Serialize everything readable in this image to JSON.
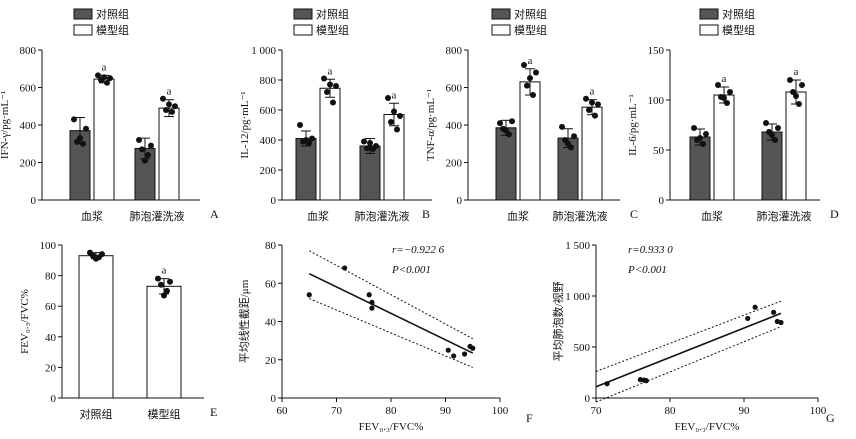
{
  "chart_data": [
    {
      "type": "bar",
      "panel": "A",
      "ylabel": "IFN-γ/pg·mL⁻¹",
      "ylim": [
        0,
        800
      ],
      "yticks": [
        0,
        200,
        400,
        600,
        800
      ],
      "categories": [
        "血浆",
        "肺泡灌洗液"
      ],
      "series": [
        {
          "name": "对照组",
          "color": "#555555",
          "values": [
            370,
            275
          ],
          "err": [
            70,
            55
          ],
          "points": [
            [
              430,
              380,
              310,
              300,
              330
            ],
            [
              320,
              290,
              270,
              240,
              210
            ]
          ]
        },
        {
          "name": "模型组",
          "color": "#ffffff",
          "values": [
            645,
            490
          ],
          "err": [
            20,
            45
          ],
          "points": [
            [
              665,
              650,
              640,
              625,
              655
            ],
            [
              540,
              500,
              480,
              470,
              510
            ]
          ]
        }
      ],
      "significance": [
        "a",
        "a"
      ]
    },
    {
      "type": "bar",
      "panel": "B",
      "ylabel": "IL-12/pg·mL⁻¹",
      "ylim": [
        0,
        1000
      ],
      "yticks": [
        0,
        200,
        400,
        600,
        800,
        1000
      ],
      "ytick_labels": [
        "0",
        "200",
        "400",
        "600",
        "800",
        "1 000"
      ],
      "categories": [
        "血浆",
        "肺泡灌洗液"
      ],
      "series": [
        {
          "name": "对照组",
          "color": "#555555",
          "values": [
            410,
            360
          ],
          "err": [
            50,
            50
          ],
          "points": [
            [
              500,
              410,
              390,
              380,
              400
            ],
            [
              390,
              360,
              345,
              340,
              380
            ]
          ]
        },
        {
          "name": "模型组",
          "color": "#ffffff",
          "values": [
            745,
            570
          ],
          "err": [
            60,
            75
          ],
          "points": [
            [
              810,
              760,
              720,
              650,
              770
            ],
            [
              680,
              560,
              520,
              470,
              590
            ]
          ]
        }
      ],
      "significance": [
        "a",
        "a"
      ]
    },
    {
      "type": "bar",
      "panel": "C",
      "ylabel": "TNF-α/pg·mL⁻¹",
      "ylim": [
        0,
        800
      ],
      "yticks": [
        0,
        200,
        400,
        600,
        800
      ],
      "categories": [
        "血浆",
        "肺泡灌洗液"
      ],
      "series": [
        {
          "name": "对照组",
          "color": "#555555",
          "values": [
            385,
            330
          ],
          "err": [
            40,
            50
          ],
          "points": [
            [
              410,
              420,
              380,
              350,
              370
            ],
            [
              390,
              340,
              320,
              280,
              300
            ]
          ]
        },
        {
          "name": "模型组",
          "color": "#ffffff",
          "values": [
            630,
            495
          ],
          "err": [
            70,
            40
          ],
          "points": [
            [
              720,
              680,
              610,
              560,
              650
            ],
            [
              540,
              510,
              480,
              450,
              520
            ]
          ]
        }
      ],
      "significance": [
        "a",
        "a"
      ]
    },
    {
      "type": "bar",
      "panel": "D",
      "ylabel": "IL-6/pg·mL⁻¹",
      "ylim": [
        0,
        150
      ],
      "yticks": [
        0,
        50,
        100,
        150
      ],
      "categories": [
        "血浆",
        "肺泡灌洗液"
      ],
      "series": [
        {
          "name": "对照组",
          "color": "#555555",
          "values": [
            63,
            68
          ],
          "err": [
            8,
            8
          ],
          "points": [
            [
              72,
              66,
              60,
              56,
              62
            ],
            [
              77,
              72,
              68,
              60,
              65
            ]
          ]
        },
        {
          "name": "模型组",
          "color": "#ffffff",
          "values": [
            105,
            108
          ],
          "err": [
            8,
            12
          ],
          "points": [
            [
              115,
              108,
              103,
              97,
              102
            ],
            [
              120,
              115,
              108,
              96,
              104
            ]
          ]
        }
      ],
      "significance": [
        "a",
        "a"
      ]
    },
    {
      "type": "bar",
      "panel": "E",
      "ylabel": "FEV₀.₃/FVC%",
      "ylim": [
        0,
        100
      ],
      "yticks": [
        0,
        20,
        40,
        60,
        80,
        100
      ],
      "categories": [
        "对照组",
        "模型组"
      ],
      "series": [
        {
          "name": "",
          "colors": [
            "#ffffff",
            "#ffffff"
          ],
          "values": [
            93,
            73
          ],
          "err": [
            2,
            5
          ],
          "points": [
            [
              95,
              94,
              93,
              92,
              91
            ],
            [
              78,
              76,
              74,
              70,
              67
            ]
          ]
        }
      ],
      "significance": [
        "",
        "a"
      ]
    },
    {
      "type": "scatter",
      "panel": "F",
      "xlabel": "FEV₀.₃/FVC%",
      "ylabel": "平均线性截距/μm",
      "xlim": [
        60,
        100
      ],
      "xticks": [
        60,
        70,
        80,
        90,
        100
      ],
      "ylim": [
        0,
        80
      ],
      "yticks": [
        0,
        20,
        40,
        60,
        80
      ],
      "x": [
        65,
        71.5,
        76,
        76.5,
        76.5,
        90.5,
        91.5,
        93.5,
        94.5,
        95
      ],
      "y": [
        54,
        68,
        54,
        50,
        47,
        25,
        22,
        23,
        27,
        26
      ],
      "fit": {
        "x": [
          65,
          95
        ],
        "y": [
          65,
          23.5
        ]
      },
      "ci_upper": {
        "x": [
          65,
          95
        ],
        "y": [
          77,
          31
        ]
      },
      "ci_lower": {
        "x": [
          65,
          95
        ],
        "y": [
          52,
          16
        ]
      },
      "annotation_r": "r=−0.922 6",
      "annotation_p": "P<0.001"
    },
    {
      "type": "scatter",
      "panel": "G",
      "xlabel": "FEV₀.₃/FVC%",
      "ylabel": "平均肺泡数/视野",
      "xlim": [
        70,
        100
      ],
      "xticks": [
        70,
        80,
        90,
        100
      ],
      "ylim": [
        0,
        1500
      ],
      "yticks": [
        0,
        500,
        1000,
        1500
      ],
      "ytick_labels": [
        "0",
        "500",
        "1 000",
        "1 500"
      ],
      "x": [
        71.5,
        76,
        76.5,
        76.8,
        90.5,
        91.5,
        94,
        94.5,
        95
      ],
      "y": [
        140,
        180,
        175,
        170,
        780,
        890,
        840,
        750,
        740
      ],
      "fit": {
        "x": [
          70,
          95
        ],
        "y": [
          110,
          830
        ]
      },
      "ci_upper": {
        "x": [
          70,
          95
        ],
        "y": [
          260,
          950
        ]
      },
      "ci_lower": {
        "x": [
          70,
          95
        ],
        "y": [
          -40,
          700
        ]
      },
      "annotation_r": "r=0.933 0",
      "annotation_p": "P<0.001"
    }
  ]
}
